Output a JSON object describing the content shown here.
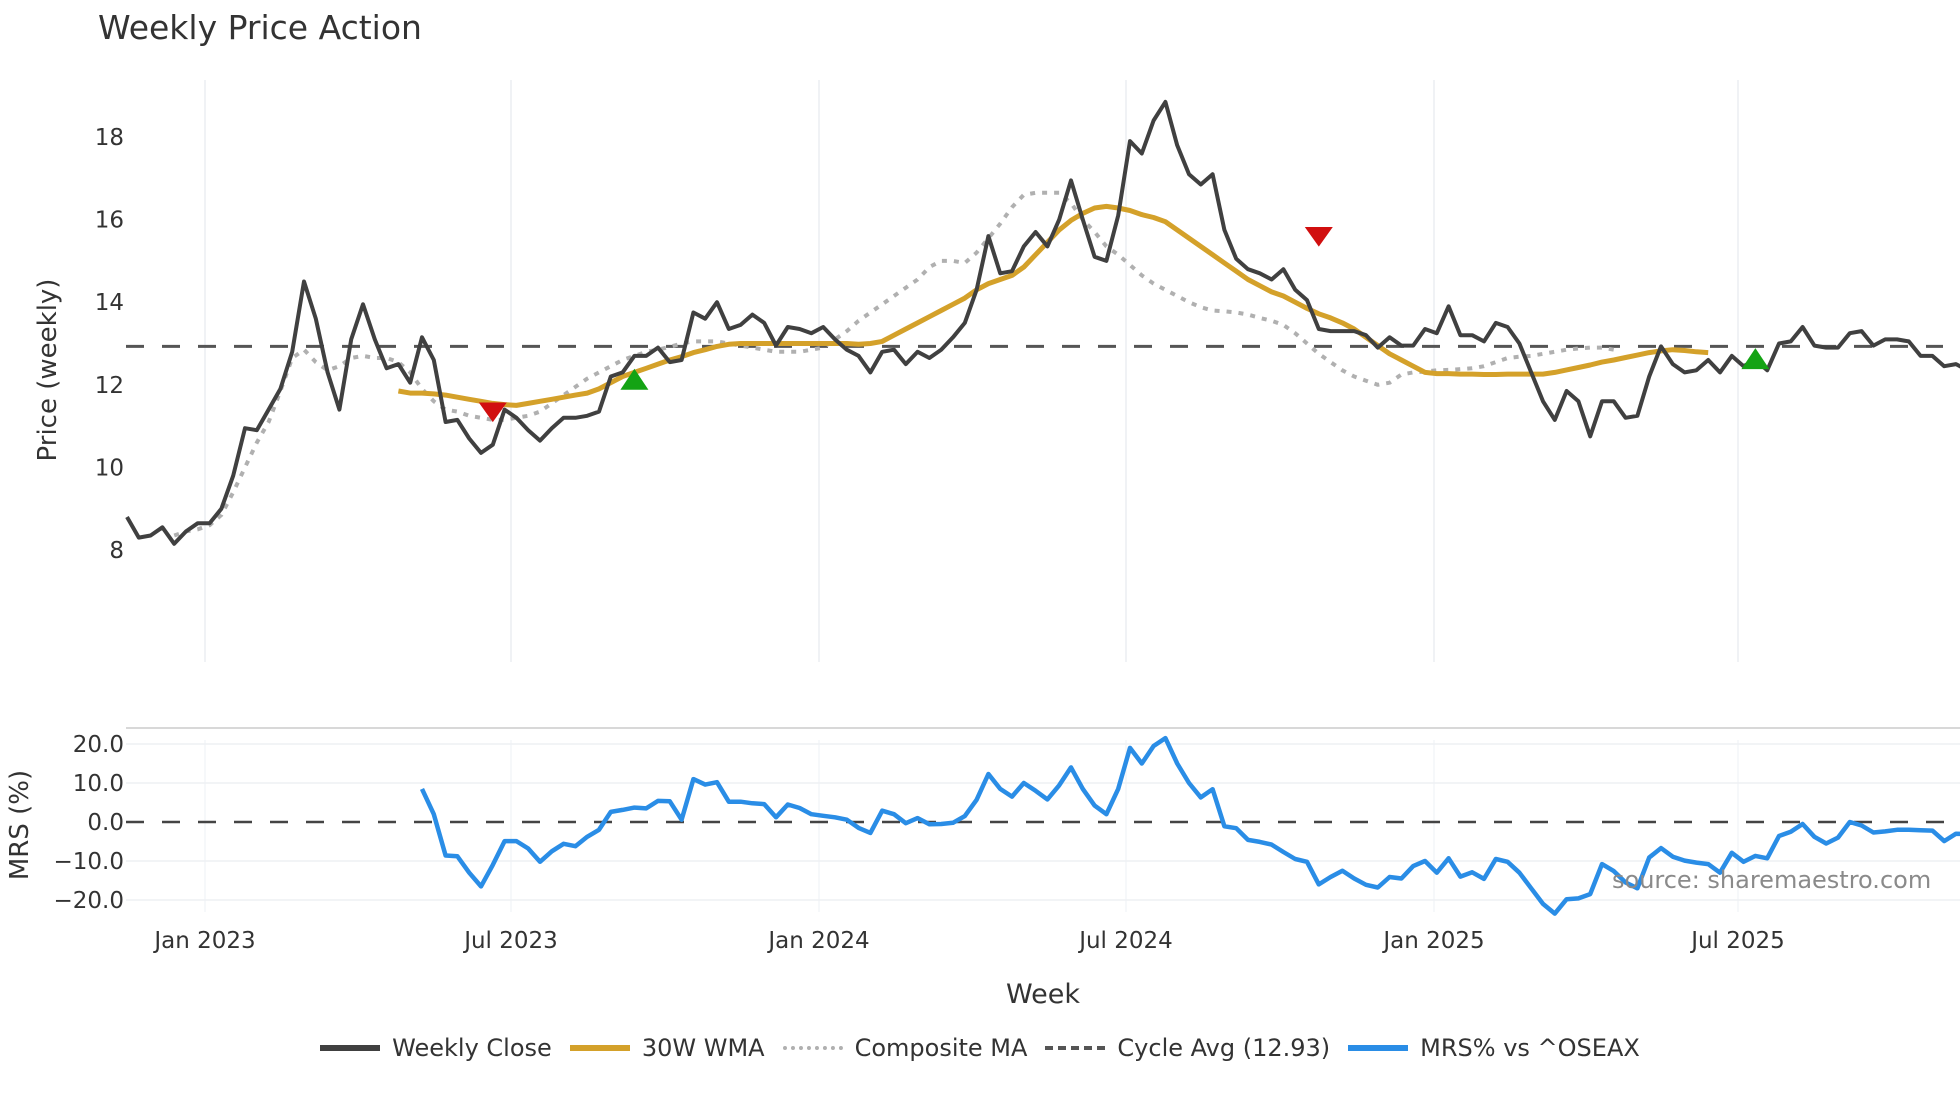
{
  "title": "Weekly Price Action",
  "watermark": "source: sharemaestro.com",
  "legend": [
    {
      "label": "Weekly Close",
      "color": "#404040",
      "style": "solid"
    },
    {
      "label": "30W WMA",
      "color": "#D4A12A",
      "style": "solid"
    },
    {
      "label": "Composite MA",
      "color": "#B0B0B0",
      "style": "dotted"
    },
    {
      "label": "Cycle Avg (12.93)",
      "color": "#555555",
      "style": "dashed"
    },
    {
      "label": "MRS% vs ^OSEAX",
      "color": "#2A8DE6",
      "style": "solid"
    }
  ],
  "chart_data": [
    {
      "type": "line",
      "title": "Weekly Price Action",
      "xlabel": "Week",
      "ylabel": "Price (weekly)",
      "ylim": [
        7.6,
        19.6
      ],
      "yticks": [
        8,
        10,
        12,
        14,
        16,
        18
      ],
      "xticks": [
        "Jan 2023",
        "Jul 2023",
        "Jan 2024",
        "Jul 2024",
        "Jan 2025",
        "Jul 2025"
      ],
      "grid": "vertical",
      "x_start": "Nov 2022",
      "x_step": "1 week",
      "cycle_avg": 12.93,
      "series": [
        {
          "name": "Weekly Close",
          "color": "#404040",
          "start_index": 0,
          "values": [
            8.8,
            8.3,
            8.35,
            8.55,
            8.15,
            8.45,
            8.65,
            8.65,
            9.0,
            9.8,
            10.95,
            10.9,
            11.4,
            11.9,
            12.8,
            14.5,
            13.6,
            12.3,
            11.4,
            13.1,
            13.95,
            13.1,
            12.4,
            12.5,
            12.05,
            13.15,
            12.6,
            11.1,
            11.15,
            10.7,
            10.35,
            10.55,
            11.4,
            11.2,
            10.9,
            10.65,
            10.95,
            11.2,
            11.2,
            11.25,
            11.35,
            12.2,
            12.3,
            12.7,
            12.7,
            12.9,
            12.55,
            12.6,
            13.75,
            13.6,
            14.0,
            13.35,
            13.45,
            13.7,
            13.5,
            12.95,
            13.4,
            13.35,
            13.25,
            13.4,
            13.1,
            12.85,
            12.7,
            12.3,
            12.8,
            12.85,
            12.5,
            12.8,
            12.65,
            12.85,
            13.15,
            13.5,
            14.3,
            15.6,
            14.7,
            14.75,
            15.35,
            15.7,
            15.35,
            16.0,
            16.95,
            16.0,
            15.1,
            15.0,
            16.1,
            17.9,
            17.6,
            18.4,
            18.85,
            17.8,
            17.1,
            16.85,
            17.1,
            15.75,
            15.05,
            14.8,
            14.7,
            14.55,
            14.8,
            14.3,
            14.05,
            13.35,
            13.3,
            13.3,
            13.3,
            13.2,
            12.9,
            13.15,
            12.95,
            12.95,
            13.35,
            13.25,
            13.9,
            13.2,
            13.2,
            13.05,
            13.5,
            13.4,
            13.0,
            12.3,
            11.6,
            11.15,
            11.85,
            11.6,
            10.75,
            11.6,
            11.6,
            11.2,
            11.25,
            12.2,
            12.93,
            12.5,
            12.3,
            12.35,
            12.6,
            12.3,
            12.7,
            12.45,
            12.6,
            12.35,
            13.0,
            13.05,
            13.4,
            12.95,
            12.9,
            12.9,
            13.25,
            13.3,
            12.95,
            13.1,
            13.1,
            13.05,
            12.7,
            12.7,
            12.45,
            12.5,
            12.35
          ]
        },
        {
          "name": "30W WMA",
          "color": "#D4A12A",
          "start_index": 23,
          "values": [
            11.85,
            11.8,
            11.8,
            11.78,
            11.75,
            11.7,
            11.65,
            11.6,
            11.55,
            11.52,
            11.5,
            11.55,
            11.6,
            11.65,
            11.7,
            11.75,
            11.8,
            11.9,
            12.05,
            12.2,
            12.3,
            12.4,
            12.5,
            12.6,
            12.68,
            12.78,
            12.85,
            12.93,
            12.98,
            13.0,
            13.0,
            13.0,
            13.0,
            13.0,
            13.0,
            13.0,
            13.0,
            13.0,
            13.0,
            12.98,
            13.0,
            13.05,
            13.2,
            13.35,
            13.5,
            13.65,
            13.8,
            13.95,
            14.1,
            14.3,
            14.45,
            14.55,
            14.65,
            14.85,
            15.15,
            15.45,
            15.75,
            15.98,
            16.15,
            16.28,
            16.32,
            16.28,
            16.22,
            16.12,
            16.05,
            15.95,
            15.75,
            15.55,
            15.35,
            15.15,
            14.95,
            14.75,
            14.55,
            14.4,
            14.25,
            14.15,
            14.0,
            13.85,
            13.72,
            13.62,
            13.5,
            13.35,
            13.15,
            12.95,
            12.75,
            12.6,
            12.45,
            12.3,
            12.27,
            12.27,
            12.26,
            12.26,
            12.25,
            12.25,
            12.26,
            12.26,
            12.26,
            12.26,
            12.3,
            12.36,
            12.42,
            12.48,
            12.55,
            12.6,
            12.66,
            12.72,
            12.78,
            12.82,
            12.85,
            12.83,
            12.8,
            12.78
          ]
        },
        {
          "name": "Composite MA",
          "color": "#B0B0B0",
          "start_index": 4,
          "values": [
            8.35,
            8.45,
            8.5,
            8.6,
            8.85,
            9.4,
            10.0,
            10.6,
            11.1,
            11.85,
            12.65,
            12.85,
            12.55,
            12.35,
            12.45,
            12.65,
            12.7,
            12.65,
            12.65,
            12.55,
            12.3,
            11.9,
            11.6,
            11.4,
            11.35,
            11.25,
            11.2,
            11.15,
            11.15,
            11.2,
            11.25,
            11.35,
            11.55,
            11.75,
            11.95,
            12.15,
            12.3,
            12.45,
            12.6,
            12.7,
            12.8,
            12.85,
            12.92,
            13.0,
            13.05,
            13.05,
            13.05,
            13.0,
            12.95,
            12.9,
            12.85,
            12.8,
            12.8,
            12.8,
            12.85,
            12.9,
            13.1,
            13.3,
            13.55,
            13.75,
            13.95,
            14.15,
            14.35,
            14.55,
            14.85,
            15.0,
            15.0,
            14.95,
            15.2,
            15.55,
            15.9,
            16.3,
            16.6,
            16.65,
            16.65,
            16.65,
            16.4,
            16.0,
            15.7,
            15.35,
            15.15,
            14.9,
            14.65,
            14.45,
            14.3,
            14.15,
            14.0,
            13.88,
            13.8,
            13.78,
            13.75,
            13.7,
            13.62,
            13.55,
            13.45,
            13.25,
            13.0,
            12.75,
            12.55,
            12.35,
            12.2,
            12.1,
            12.0,
            12.05,
            12.25,
            12.3,
            12.32,
            12.35,
            12.36,
            12.38,
            12.4,
            12.45,
            12.55,
            12.65,
            12.68,
            12.7,
            12.75,
            12.8,
            12.85,
            12.88,
            12.9,
            12.9,
            12.85
          ]
        },
        {
          "name": "MRS% vs ^OSEAX",
          "color": "#2A8DE6",
          "panel": "lower",
          "start_index": 25,
          "values": [
            8.5,
            2.0,
            -8.6,
            -8.8,
            -13.0,
            -16.5,
            -11.0,
            -4.9,
            -4.9,
            -6.8,
            -10.2,
            -7.5,
            -5.6,
            -6.2,
            -3.8,
            -2.0,
            2.6,
            3.1,
            3.7,
            3.5,
            5.4,
            5.3,
            0.6,
            11.0,
            9.6,
            10.2,
            5.2,
            5.2,
            4.8,
            4.6,
            1.2,
            4.5,
            3.6,
            2.0,
            1.6,
            1.2,
            0.6,
            -1.5,
            -2.8,
            2.9,
            2.0,
            -0.3,
            1.0,
            -0.6,
            -0.5,
            -0.2,
            1.5,
            5.7,
            12.3,
            8.5,
            6.5,
            10.0,
            8.0,
            5.8,
            9.4,
            14.0,
            8.5,
            4.2,
            2.0,
            8.5,
            19.0,
            15.0,
            19.5,
            21.5,
            15.0,
            10.0,
            6.3,
            8.4,
            -1.1,
            -1.6,
            -4.6,
            -5.1,
            -5.8,
            -7.7,
            -9.5,
            -10.2,
            -16.0,
            -14.1,
            -12.5,
            -14.5,
            -16.1,
            -16.8,
            -14.1,
            -14.5,
            -11.3,
            -10.0,
            -13.0,
            -9.3,
            -14.0,
            -12.9,
            -14.6,
            -9.5,
            -10.2,
            -13.0,
            -17.0,
            -21.0,
            -23.5,
            -19.8,
            -19.6,
            -18.5,
            -10.8,
            -12.6,
            -15.5,
            -17.0,
            -9.1,
            -6.7,
            -8.9,
            -9.9,
            -10.4,
            -10.8,
            -13.0,
            -7.9,
            -10.2,
            -8.7,
            -9.3,
            -3.6,
            -2.5,
            -0.5,
            -3.8,
            -5.5,
            -4.0,
            0.0,
            -0.9,
            -2.7,
            -2.4,
            -2.0,
            -2.0,
            -2.1,
            -2.2,
            -4.9,
            -3.0,
            -3.1
          ]
        }
      ],
      "markers": [
        {
          "type": "sell",
          "shape": "triangle-down",
          "color": "#D10F0F",
          "index": 31,
          "value": 11.35
        },
        {
          "type": "buy",
          "shape": "triangle-up",
          "color": "#14A314",
          "index": 43,
          "value": 12.1
        },
        {
          "type": "sell",
          "shape": "triangle-down",
          "color": "#D10F0F",
          "index": 101,
          "value": 15.6
        },
        {
          "type": "buy",
          "shape": "triangle-up",
          "color": "#14A314",
          "index": 138,
          "value": 12.6
        }
      ]
    },
    {
      "type": "line",
      "ylabel": "MRS (%)",
      "ylim": [
        -26,
        24
      ],
      "yticks": [
        "20.0",
        "10.0",
        "0.0",
        "−10.0",
        "−20.0"
      ],
      "ytick_values": [
        20,
        10,
        0,
        -10,
        -20
      ],
      "zero_line": "dashed"
    }
  ],
  "axes": {
    "price_ylabel": "Price (weekly)",
    "mrs_ylabel": "MRS (%)",
    "xlabel": "Week",
    "price_ticks": [
      "8",
      "10",
      "12",
      "14",
      "16",
      "18"
    ],
    "mrs_ticks": [
      "20.0",
      "10.0",
      "0.0",
      "−10.0",
      "−20.0"
    ],
    "x_ticks": [
      "Jan 2023",
      "Jul 2023",
      "Jan 2024",
      "Jul 2024",
      "Jan 2025",
      "Jul 2025"
    ]
  }
}
